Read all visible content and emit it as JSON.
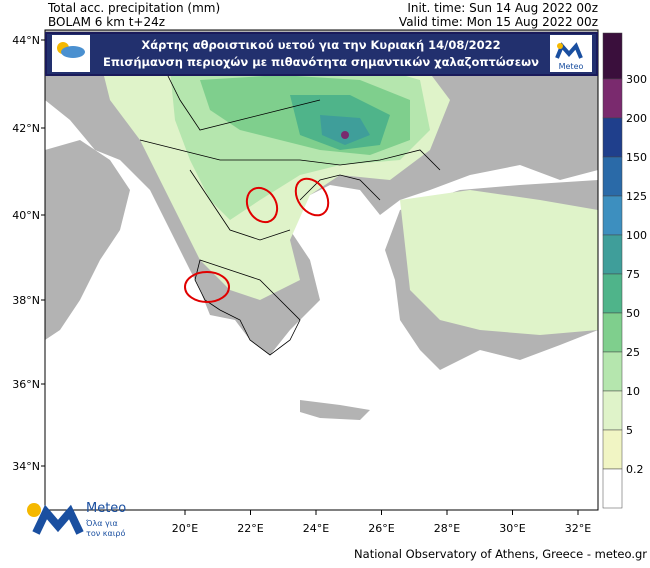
{
  "header": {
    "left": [
      "Total acc. precipitation (mm)",
      "BOLAM 6 km t+24z"
    ],
    "right": [
      "Init. time: Sun 14 Aug 2022 00z",
      "Valid time: Mon 15 Aug 2022 00z"
    ]
  },
  "banner": {
    "lines": [
      "Χάρτης αθροιστικού υετού για την Κυριακή 14/08/2022",
      "Επισήμανση περιοχών με πιθανότητα σημαντικών χαλαζοπτώσεων"
    ],
    "logo": "Meteo"
  },
  "map": {
    "lat_labels": [
      "44°N",
      "42°N",
      "40°N",
      "38°N",
      "36°N",
      "34°N"
    ],
    "lon_labels": [
      "20°E",
      "22°E",
      "24°E",
      "26°E",
      "28°E",
      "30°E",
      "32°E"
    ]
  },
  "colorbar": {
    "levels": [
      300,
      200,
      150,
      125,
      100,
      75,
      50,
      25,
      10,
      5,
      0.2
    ],
    "colors": [
      "#3a0f3c",
      "#7a2a6e",
      "#1f3f8c",
      "#2a6aa8",
      "#3d8fbf",
      "#3f9e9a",
      "#4fb48a",
      "#7fcf8d",
      "#b5e6ae",
      "#dff3c9",
      "#f1f5c4",
      "#ffffff"
    ]
  },
  "logo": {
    "name": "Meteo",
    "tagline": [
      "Όλα για",
      "τον καιρό"
    ]
  },
  "footer": "National Observatory of Athens, Greece - meteo.gr"
}
